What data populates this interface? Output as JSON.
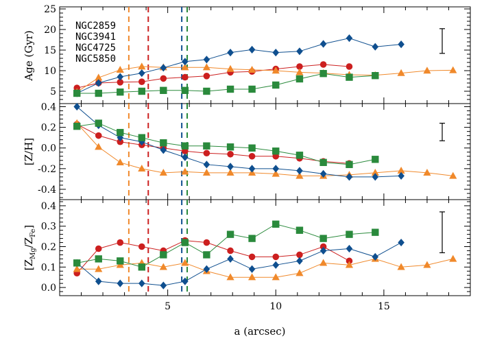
{
  "chart_data": {
    "type": "scatter",
    "xlabel": "a (arcsec)",
    "xlim": [
      0,
      19
    ],
    "xticks": [
      5,
      10,
      15
    ],
    "legend": {
      "placement": "top-left",
      "entries": [
        "NGC2859",
        "NGC3941",
        "NGC4725",
        "NGC5850"
      ]
    },
    "galaxies": [
      {
        "name": "NGC2859",
        "color": "#cc1f1f",
        "marker": "circle"
      },
      {
        "name": "NGC3941",
        "color": "#f0892b",
        "marker": "triangle"
      },
      {
        "name": "NGC4725",
        "color": "#0f4f8f",
        "marker": "diamond"
      },
      {
        "name": "NGC5850",
        "color": "#2a8a3c",
        "marker": "square"
      }
    ],
    "vlines": [
      {
        "galaxy": "NGC3941",
        "x": 3.2
      },
      {
        "galaxy": "NGC2859",
        "x": 4.1
      },
      {
        "galaxy": "NGC4725",
        "x": 5.65
      },
      {
        "galaxy": "NGC5850",
        "x": 5.9
      }
    ],
    "panels": [
      {
        "id": "age",
        "ylabel": "Age (Gyr)",
        "ylim": [
          2,
          25.5
        ],
        "yticks": [
          5,
          10,
          15,
          20,
          25
        ],
        "ytick_labels": [
          "5",
          "10",
          "15",
          "20",
          "25"
        ],
        "errorbar": {
          "x": 17.7,
          "y": 17.2,
          "half": 3.0
        },
        "series": [
          {
            "galaxy": "NGC2859",
            "x": [
              0.8,
              1.8,
              2.8,
              3.8,
              4.8,
              5.8,
              6.8,
              7.9,
              8.9,
              10.0,
              11.1,
              12.2,
              13.4
            ],
            "y": [
              5.8,
              7.0,
              7.2,
              7.3,
              8.1,
              8.4,
              8.7,
              9.6,
              9.8,
              10.4,
              11.0,
              11.5,
              11.0
            ]
          },
          {
            "galaxy": "NGC3941",
            "x": [
              0.8,
              1.8,
              2.8,
              3.8,
              4.8,
              5.8,
              6.8,
              7.9,
              8.9,
              10.0,
              11.1,
              12.2,
              13.4,
              14.6,
              15.8,
              17.0,
              18.2
            ],
            "y": [
              4.8,
              8.3,
              10.2,
              11.0,
              10.8,
              10.8,
              10.8,
              10.4,
              10.2,
              10.0,
              9.6,
              9.4,
              9.0,
              8.9,
              9.4,
              10.0,
              10.1
            ]
          },
          {
            "galaxy": "NGC4725",
            "x": [
              0.8,
              1.8,
              2.8,
              3.8,
              4.8,
              5.8,
              6.8,
              7.9,
              8.9,
              10.0,
              11.1,
              12.2,
              13.4,
              14.6,
              15.8
            ],
            "y": [
              4.5,
              7.0,
              8.5,
              9.4,
              10.7,
              12.2,
              12.7,
              14.4,
              15.1,
              14.4,
              14.7,
              16.5,
              17.9,
              15.8,
              16.4
            ]
          },
          {
            "galaxy": "NGC5850",
            "x": [
              0.8,
              1.8,
              2.8,
              3.8,
              4.8,
              5.8,
              6.8,
              7.9,
              8.9,
              10.0,
              11.1,
              12.2,
              13.4,
              14.6
            ],
            "y": [
              4.5,
              4.5,
              4.8,
              5.0,
              5.2,
              5.2,
              5.0,
              5.5,
              5.5,
              6.5,
              8.0,
              9.3,
              8.4,
              8.8
            ]
          }
        ]
      },
      {
        "id": "zh",
        "ylabel": "[Z/H]",
        "ylim": [
          -0.5,
          0.43
        ],
        "yticks": [
          0.4,
          0.2,
          0.0,
          -0.2,
          -0.4
        ],
        "ytick_labels": [
          "0.4",
          "0.2",
          "0.0",
          "-0.2",
          "-0.4"
        ],
        "errorbar": {
          "x": 17.7,
          "y": 0.155,
          "half": 0.085
        },
        "series": [
          {
            "galaxy": "NGC2859",
            "x": [
              0.8,
              1.8,
              2.8,
              3.8,
              4.8,
              5.8,
              6.8,
              7.9,
              8.9,
              10.0,
              11.1,
              12.2,
              13.4
            ],
            "y": [
              0.23,
              0.12,
              0.06,
              0.03,
              0.0,
              -0.03,
              -0.05,
              -0.06,
              -0.08,
              -0.08,
              -0.1,
              -0.13,
              -0.15
            ]
          },
          {
            "galaxy": "NGC3941",
            "x": [
              0.8,
              1.8,
              2.8,
              3.8,
              4.8,
              5.8,
              6.8,
              7.9,
              8.9,
              10.0,
              11.1,
              12.2,
              13.4,
              14.6,
              15.8,
              17.0,
              18.2
            ],
            "y": [
              0.24,
              0.01,
              -0.14,
              -0.2,
              -0.24,
              -0.23,
              -0.24,
              -0.24,
              -0.24,
              -0.25,
              -0.27,
              -0.27,
              -0.26,
              -0.24,
              -0.22,
              -0.24,
              -0.27
            ]
          },
          {
            "galaxy": "NGC4725",
            "x": [
              0.8,
              1.8,
              2.8,
              3.8,
              4.8,
              5.8,
              6.8,
              7.9,
              8.9,
              10.0,
              11.1,
              12.2,
              13.4,
              14.6,
              15.8
            ],
            "y": [
              0.4,
              0.22,
              0.1,
              0.06,
              -0.02,
              -0.09,
              -0.16,
              -0.18,
              -0.2,
              -0.2,
              -0.22,
              -0.25,
              -0.28,
              -0.28,
              -0.27
            ]
          },
          {
            "galaxy": "NGC5850",
            "x": [
              0.8,
              1.8,
              2.8,
              3.8,
              4.8,
              5.8,
              6.8,
              7.9,
              8.9,
              10.0,
              11.1,
              12.2,
              13.4,
              14.6
            ],
            "y": [
              0.21,
              0.24,
              0.15,
              0.1,
              0.05,
              0.02,
              0.02,
              0.01,
              0.0,
              -0.03,
              -0.07,
              -0.14,
              -0.16,
              -0.11
            ]
          }
        ]
      },
      {
        "id": "zmgfe",
        "ylabel": "[Z_Mg/Z_Fe]",
        "ylabel_main": "[Z",
        "ylabel_sub1": "Mg",
        "ylabel_mid": "/Z",
        "ylabel_sub2": "Fe",
        "ylabel_end": "]",
        "ylim": [
          -0.04,
          0.43
        ],
        "yticks": [
          0.0,
          0.1,
          0.2,
          0.3,
          0.4
        ],
        "ytick_labels": [
          "0.0",
          "0.1",
          "0.2",
          "0.3",
          "0.4"
        ],
        "errorbar": {
          "x": 17.7,
          "y": 0.27,
          "half": 0.1
        },
        "series": [
          {
            "galaxy": "NGC2859",
            "x": [
              0.8,
              1.8,
              2.8,
              3.8,
              4.8,
              5.8,
              6.8,
              7.9,
              8.9,
              10.0,
              11.1,
              12.2,
              13.4
            ],
            "y": [
              0.07,
              0.19,
              0.22,
              0.2,
              0.18,
              0.23,
              0.22,
              0.18,
              0.15,
              0.15,
              0.16,
              0.2,
              0.13
            ]
          },
          {
            "galaxy": "NGC3941",
            "x": [
              0.8,
              1.8,
              2.8,
              3.8,
              4.8,
              5.8,
              6.8,
              7.9,
              8.9,
              10.0,
              11.1,
              12.2,
              13.4,
              14.6,
              15.8,
              17.0,
              18.2
            ],
            "y": [
              0.09,
              0.09,
              0.11,
              0.12,
              0.1,
              0.12,
              0.08,
              0.05,
              0.05,
              0.05,
              0.07,
              0.12,
              0.11,
              0.14,
              0.1,
              0.11,
              0.14
            ]
          },
          {
            "galaxy": "NGC4725",
            "x": [
              0.8,
              1.8,
              2.8,
              3.8,
              4.8,
              5.8,
              6.8,
              7.9,
              8.9,
              10.0,
              11.1,
              12.2,
              13.4,
              14.6,
              15.8
            ],
            "y": [
              0.12,
              0.03,
              0.02,
              0.02,
              0.01,
              0.03,
              0.09,
              0.14,
              0.09,
              0.11,
              0.13,
              0.18,
              0.19,
              0.15,
              0.22
            ]
          },
          {
            "galaxy": "NGC5850",
            "x": [
              0.8,
              1.8,
              2.8,
              3.8,
              4.8,
              5.8,
              6.8,
              7.9,
              8.9,
              10.0,
              11.1,
              12.2,
              13.4,
              14.6
            ],
            "y": [
              0.12,
              0.14,
              0.13,
              0.1,
              0.16,
              0.22,
              0.16,
              0.26,
              0.24,
              0.31,
              0.28,
              0.24,
              0.26,
              0.27
            ]
          }
        ]
      }
    ]
  }
}
